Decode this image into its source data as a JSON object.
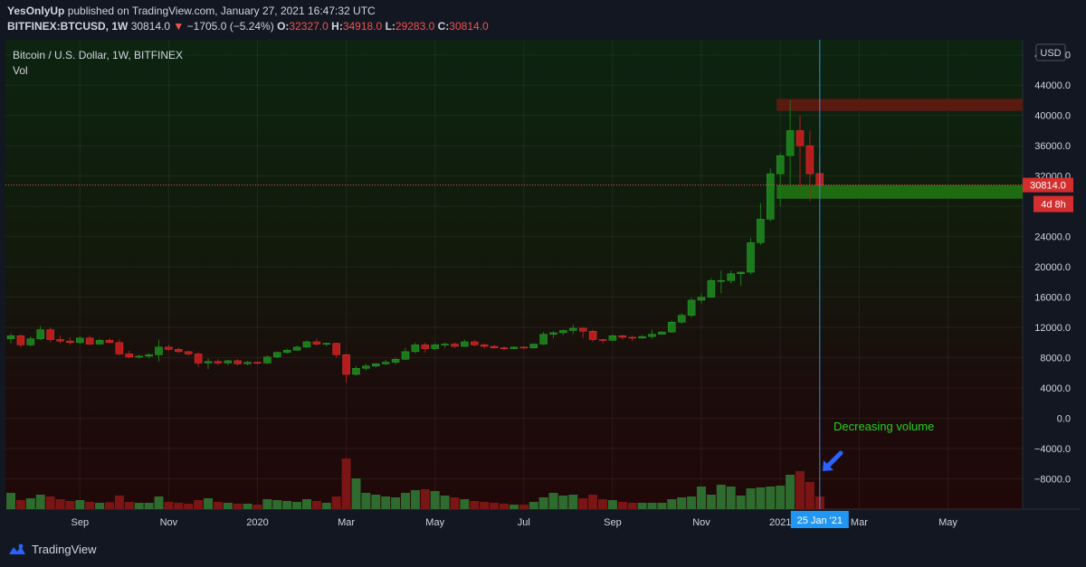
{
  "header": {
    "author": "YesOnlyUp",
    "published_text": "published on TradingView.com, January 27, 2021 16:47:32 UTC",
    "symbol": "BITFINEX:BTCUSD, 1W",
    "last": "30814.0",
    "change": "−1705.0 (−5.24%)",
    "o_label": "O:",
    "o_value": "32327.0",
    "h_label": "H:",
    "h_value": "34918.0",
    "l_label": "L:",
    "l_value": "29283.0",
    "c_label": "C:",
    "c_value": "30814.0"
  },
  "legend": {
    "title": "Bitcoin / U.S. Dollar, 1W, BITFINEX",
    "vol_label": "Vol"
  },
  "currency_badge": "USD",
  "price_badge": "30814.0",
  "countdown_badge": "4d 8h",
  "crosshair_date": "25 Jan '21",
  "annotation": "Decreasing volume",
  "footer_brand": "TradingView",
  "colors": {
    "up": "#1b7a1b",
    "down": "#b71c1c",
    "vol_up": "#2e6b2e",
    "vol_down": "#7a1515",
    "accent_blue": "#2196f3",
    "annotation_green": "#22d11c",
    "resistance_zone": "#5a1a10",
    "support_zone": "#1e6b12"
  },
  "chart_data": {
    "type": "candlestick",
    "timeframe": "1W",
    "ylim": [
      -12000,
      50000
    ],
    "y_ticks": [
      48000,
      44000,
      40000,
      36000,
      32000,
      28000,
      24000,
      20000,
      16000,
      12000,
      8000,
      4000,
      0,
      -4000,
      -8000
    ],
    "y_tick_labels": [
      "48000.0",
      "44000.0",
      "40000.0",
      "36000.0",
      "32000.0",
      "28000.0",
      "24000.0",
      "20000.0",
      "16000.0",
      "12000.0",
      "8000.0",
      "4000.0",
      "0.0",
      "−4000.0",
      "−8000.0"
    ],
    "x_labels": [
      {
        "label": "Sep",
        "index": 7
      },
      {
        "label": "Nov",
        "index": 16
      },
      {
        "label": "2020",
        "index": 25
      },
      {
        "label": "Mar",
        "index": 34
      },
      {
        "label": "May",
        "index": 43
      },
      {
        "label": "Jul",
        "index": 52
      },
      {
        "label": "Sep",
        "index": 61
      },
      {
        "label": "Nov",
        "index": 70
      },
      {
        "label": "2021",
        "index": 78
      },
      {
        "label": "Mar",
        "index": 86
      },
      {
        "label": "May",
        "index": 95
      }
    ],
    "last_price": 30814.0,
    "zones": [
      {
        "name": "resistance",
        "from": 40600,
        "to": 42200
      },
      {
        "name": "support",
        "from": 29000,
        "to": 30800
      }
    ],
    "candles": [
      [
        10500,
        11200,
        9900,
        10900,
        9000
      ],
      [
        10900,
        11100,
        9400,
        9700,
        5000
      ],
      [
        9700,
        10800,
        9500,
        10500,
        6000
      ],
      [
        10500,
        12200,
        10300,
        11700,
        8000
      ],
      [
        11700,
        12000,
        10100,
        10400,
        7000
      ],
      [
        10400,
        10900,
        9900,
        10200,
        5500
      ],
      [
        10200,
        10700,
        9700,
        10000,
        4500
      ],
      [
        10000,
        10800,
        9800,
        10600,
        5000
      ],
      [
        10600,
        10900,
        9700,
        9800,
        4000
      ],
      [
        9800,
        10500,
        9800,
        10300,
        3500
      ],
      [
        10300,
        10600,
        9900,
        10000,
        3800
      ],
      [
        10000,
        10400,
        8300,
        8500,
        7500
      ],
      [
        8500,
        8900,
        7900,
        8100,
        4000
      ],
      [
        8100,
        8400,
        7900,
        8200,
        3500
      ],
      [
        8200,
        8600,
        7900,
        8400,
        3500
      ],
      [
        8400,
        10400,
        7500,
        9400,
        7000
      ],
      [
        9400,
        9700,
        8900,
        9100,
        4000
      ],
      [
        9100,
        9300,
        8600,
        8800,
        3500
      ],
      [
        8800,
        8900,
        8300,
        8500,
        3000
      ],
      [
        8500,
        8700,
        6800,
        7300,
        5000
      ],
      [
        7300,
        7900,
        6500,
        7500,
        6000
      ],
      [
        7500,
        7800,
        7000,
        7300,
        4000
      ],
      [
        7300,
        7700,
        7000,
        7600,
        3500
      ],
      [
        7600,
        7800,
        7000,
        7200,
        3000
      ],
      [
        7200,
        7600,
        7000,
        7400,
        3000
      ],
      [
        7400,
        7500,
        7100,
        7300,
        2500
      ],
      [
        7300,
        8300,
        7200,
        8100,
        5500
      ],
      [
        8100,
        8800,
        7900,
        8700,
        5000
      ],
      [
        8700,
        9200,
        8500,
        9000,
        4500
      ],
      [
        9000,
        9600,
        8900,
        9400,
        4000
      ],
      [
        9400,
        10300,
        9300,
        10100,
        5500
      ],
      [
        10100,
        10500,
        9600,
        9800,
        4500
      ],
      [
        9800,
        10000,
        9500,
        9900,
        3500
      ],
      [
        9900,
        10000,
        8000,
        8400,
        7000
      ],
      [
        8400,
        8500,
        4700,
        5800,
        28000
      ],
      [
        5800,
        6900,
        5600,
        6600,
        17000
      ],
      [
        6600,
        7200,
        6300,
        6900,
        9000
      ],
      [
        6900,
        7300,
        6700,
        7200,
        8000
      ],
      [
        7200,
        7700,
        7000,
        7400,
        7000
      ],
      [
        7400,
        8000,
        7100,
        7800,
        6500
      ],
      [
        7800,
        9300,
        7700,
        8800,
        9000
      ],
      [
        8800,
        10000,
        8600,
        9700,
        10500
      ],
      [
        9700,
        10000,
        8700,
        9200,
        11000
      ],
      [
        9200,
        9900,
        9000,
        9700,
        10000
      ],
      [
        9700,
        10000,
        9300,
        9800,
        7500
      ],
      [
        9800,
        10000,
        9300,
        9500,
        6500
      ],
      [
        9500,
        10400,
        9400,
        10100,
        5500
      ],
      [
        10100,
        10300,
        9500,
        9700,
        4500
      ],
      [
        9700,
        9900,
        9200,
        9500,
        4000
      ],
      [
        9500,
        9700,
        9200,
        9300,
        3500
      ],
      [
        9300,
        9500,
        9000,
        9200,
        3000
      ],
      [
        9200,
        9500,
        9100,
        9400,
        2500
      ],
      [
        9400,
        9500,
        9100,
        9300,
        2500
      ],
      [
        9300,
        9900,
        9200,
        9800,
        4000
      ],
      [
        9800,
        11400,
        9700,
        11100,
        6500
      ],
      [
        11100,
        11500,
        10600,
        11300,
        9000
      ],
      [
        11300,
        11700,
        11000,
        11600,
        7500
      ],
      [
        11600,
        12400,
        11100,
        11900,
        8000
      ],
      [
        11900,
        12000,
        10600,
        11500,
        6000
      ],
      [
        11500,
        11700,
        10100,
        10400,
        8000
      ],
      [
        10400,
        10500,
        9900,
        10300,
        5500
      ],
      [
        10300,
        11100,
        10200,
        10900,
        5000
      ],
      [
        10900,
        11000,
        10400,
        10700,
        4000
      ],
      [
        10700,
        10900,
        10200,
        10600,
        3500
      ],
      [
        10600,
        11000,
        10500,
        10800,
        3500
      ],
      [
        10800,
        11700,
        10500,
        11100,
        3500
      ],
      [
        11100,
        11500,
        11100,
        11400,
        3500
      ],
      [
        11400,
        12900,
        11300,
        12700,
        5500
      ],
      [
        12700,
        13900,
        12500,
        13600,
        6500
      ],
      [
        13600,
        15900,
        13300,
        15600,
        7000
      ],
      [
        15600,
        16500,
        15100,
        16000,
        12500
      ],
      [
        16000,
        18500,
        15900,
        18200,
        8000
      ],
      [
        18200,
        19500,
        16500,
        18200,
        13500
      ],
      [
        18200,
        19500,
        17800,
        19100,
        12500
      ],
      [
        19100,
        19400,
        17500,
        19300,
        7500
      ],
      [
        19300,
        23800,
        19000,
        23200,
        11500
      ],
      [
        23200,
        28400,
        22900,
        26300,
        12000
      ],
      [
        26300,
        33000,
        26000,
        32300,
        12500
      ],
      [
        32300,
        35000,
        28000,
        34700,
        13000
      ],
      [
        34700,
        42000,
        30000,
        38000,
        19000
      ],
      [
        38000,
        40000,
        30500,
        36000,
        21000
      ],
      [
        36000,
        38000,
        28700,
        32300,
        15000
      ],
      [
        32327,
        34918,
        29283,
        30814,
        7000
      ]
    ]
  }
}
